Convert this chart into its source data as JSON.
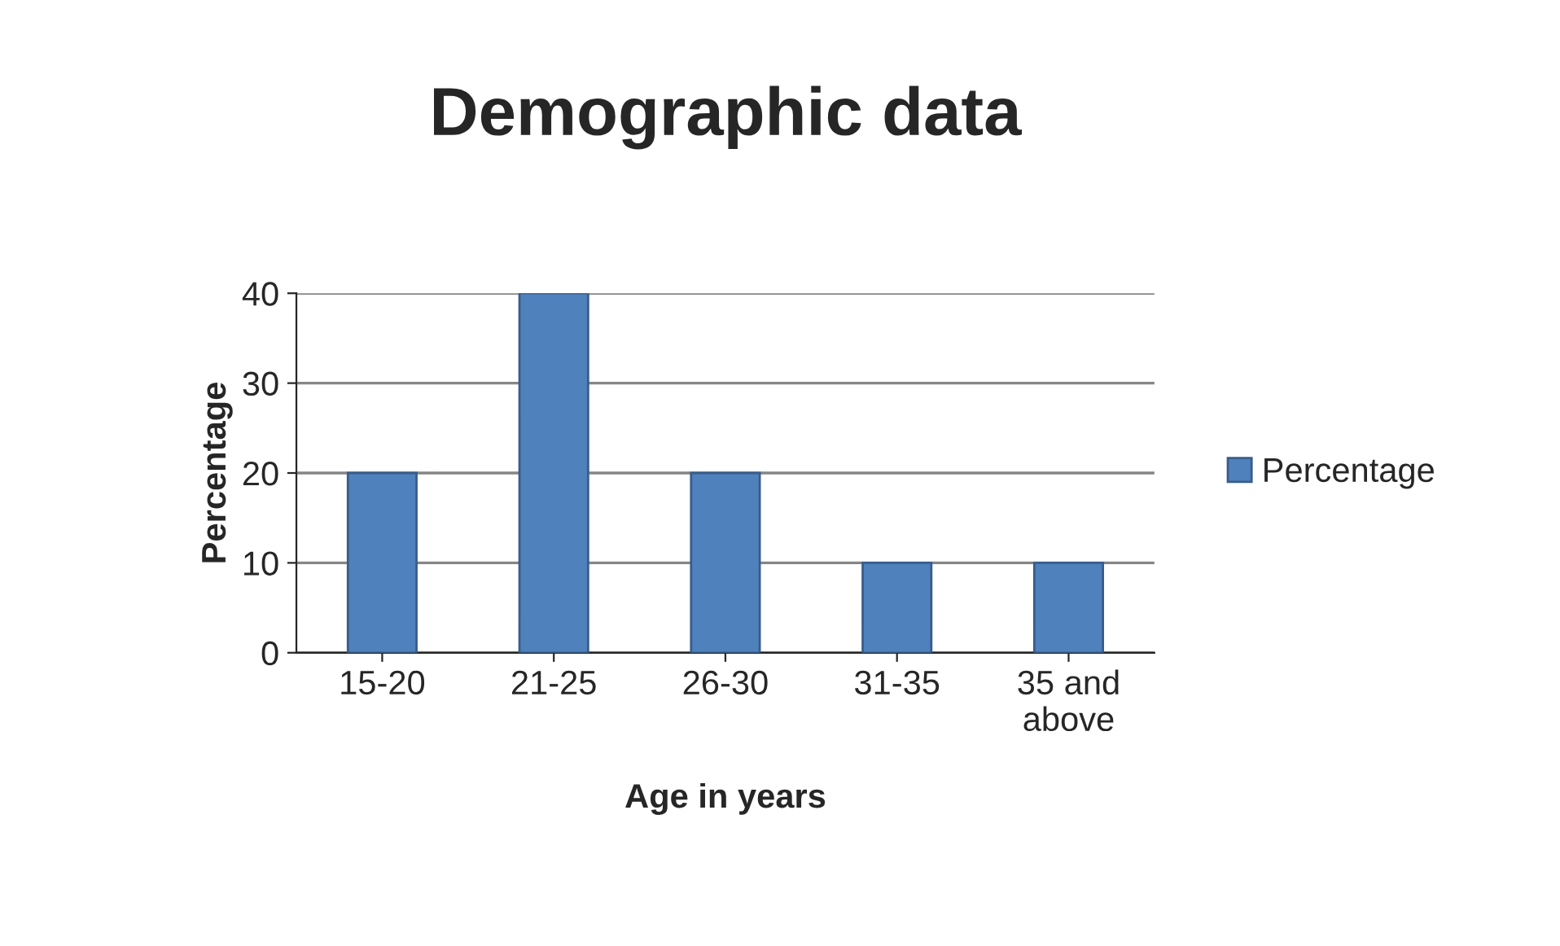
{
  "chart_data": {
    "type": "bar",
    "title": "Demographic data",
    "xlabel": "Age in years",
    "ylabel": "Percentage",
    "categories": [
      "15-20",
      "21-25",
      "26-30",
      "31-35",
      "35 and\nabove"
    ],
    "series": [
      {
        "name": "Percentage",
        "color": "#4f81bd",
        "values": [
          20,
          40,
          20,
          10,
          10
        ]
      }
    ],
    "ylim": [
      0,
      40
    ],
    "yticks": [
      0,
      10,
      20,
      30,
      40
    ],
    "grid": "y",
    "legend": "right"
  }
}
